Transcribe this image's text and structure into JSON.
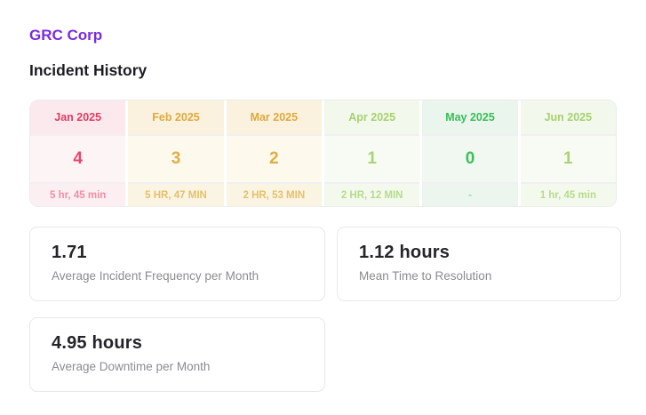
{
  "page": {
    "company_name": "GRC Corp",
    "section_title": "Incident History"
  },
  "colors": {
    "accent_purple": "#7a2be2",
    "heading_dark": "#1d1c22",
    "card_label_gray": "#8c8b91",
    "severity_red": "#e23e63",
    "severity_amber": "#e0a93e",
    "severity_light_green": "#a6d171",
    "severity_green": "#38bf56"
  },
  "table": {
    "months": [
      {
        "label": "Jan 2025",
        "count": "4",
        "duration": "5 hr, 45 min",
        "css": {
          "--head-bg": "#fbe9ee",
          "--head-text": "#e23e63",
          "--val-bg": "#fdf4f6",
          "--val-text": "#e5486c",
          "--dur-bg": "#fceff2",
          "--dur-text": "#f18ea6"
        }
      },
      {
        "label": "Feb 2025",
        "count": "3",
        "duration": "5 HR, 47 MIN",
        "css": {
          "--head-bg": "#faf2df",
          "--head-text": "#e0a93e",
          "--val-bg": "#fdf9ec",
          "--val-text": "#e2ad44",
          "--dur-bg": "#faf4e2",
          "--dur-text": "#e7c06a"
        }
      },
      {
        "label": "Mar 2025",
        "count": "2",
        "duration": "2 HR, 53 MIN",
        "css": {
          "--head-bg": "#faf2df",
          "--head-text": "#e0a93e",
          "--val-bg": "#fdf9ec",
          "--val-text": "#e2ad44",
          "--dur-bg": "#faf4e2",
          "--dur-text": "#e7c06a"
        }
      },
      {
        "label": "Apr 2025",
        "count": "1",
        "duration": "2 HR, 12 MIN",
        "css": {
          "--head-bg": "#f2f8eb",
          "--head-text": "#a6d171",
          "--val-bg": "#f8fbf3",
          "--val-text": "#a8d473",
          "--dur-bg": "#f4f9ee",
          "--dur-text": "#b6dc89"
        }
      },
      {
        "label": "May 2025",
        "count": "0",
        "duration": "-",
        "css": {
          "--head-bg": "#eaf5ed",
          "--head-text": "#38bf56",
          "--val-bg": "#f1f8f2",
          "--val-text": "#3cc15a",
          "--dur-bg": "#ecf6ef",
          "--dur-text": "#90d8a0"
        }
      },
      {
        "label": "Jun 2025",
        "count": "1",
        "duration": "1 hr, 45 min",
        "css": {
          "--head-bg": "#f2f8eb",
          "--head-text": "#a6d171",
          "--val-bg": "#f8fbf3",
          "--val-text": "#a8d473",
          "--dur-bg": "#f4f9ee",
          "--dur-text": "#b6dc89"
        }
      }
    ]
  },
  "cards": [
    {
      "value": "1.71",
      "label": "Average Incident Frequency per Month"
    },
    {
      "value": "1.12 hours",
      "label": "Mean Time to Resolution"
    },
    {
      "value": "4.95 hours",
      "label": "Average Downtime per Month"
    }
  ]
}
